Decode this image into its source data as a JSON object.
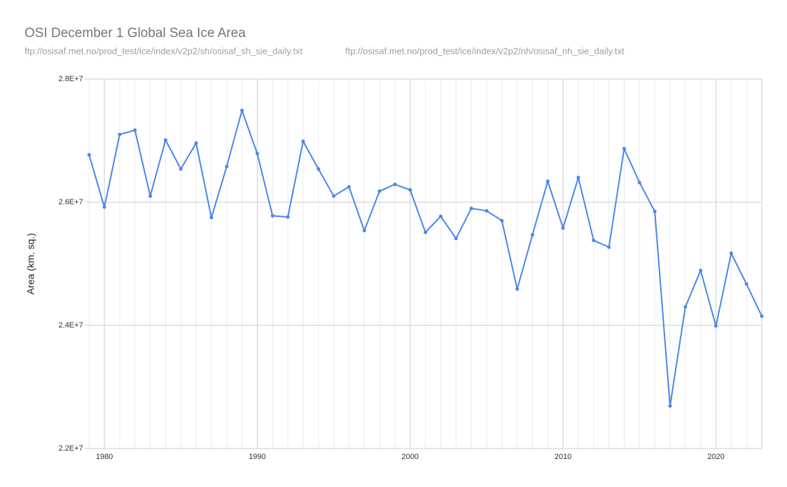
{
  "chart_data": {
    "type": "line",
    "title": "OSI December 1 Global Sea Ice Area",
    "subtitle": [
      "ftp://osisaf.met.no/prod_test/ice/index/v2p2/sh/osisaf_sh_sie_daily.txt",
      "ftp://osisaf.met.no/prod_test/ice/index/v2p2/nh/osisaf_nh_sie_daily.txt"
    ],
    "y_label": "Area (km. sq.)",
    "x": [
      1979,
      1980,
      1981,
      1982,
      1983,
      1984,
      1985,
      1986,
      1987,
      1988,
      1989,
      1990,
      1991,
      1992,
      1993,
      1994,
      1995,
      1996,
      1997,
      1998,
      1999,
      2000,
      2001,
      2002,
      2003,
      2004,
      2005,
      2006,
      2007,
      2008,
      2009,
      2010,
      2011,
      2012,
      2013,
      2014,
      2015,
      2016,
      2017,
      2018,
      2019,
      2020,
      2021,
      2022,
      2023
    ],
    "series": [
      {
        "name": "Area",
        "color": "#4a86e8",
        "values": [
          26770000,
          25920000,
          27100000,
          27170000,
          26100000,
          27010000,
          26540000,
          26960000,
          25750000,
          26580000,
          27490000,
          26790000,
          25780000,
          25760000,
          26990000,
          26540000,
          26100000,
          26250000,
          25540000,
          26180000,
          26290000,
          26200000,
          25510000,
          25770000,
          25410000,
          25900000,
          25860000,
          25700000,
          24590000,
          25470000,
          26340000,
          25580000,
          26400000,
          25380000,
          25270000,
          26870000,
          26320000,
          25850000,
          22690000,
          24300000,
          24890000,
          23990000,
          25170000,
          24670000,
          24150000
        ]
      }
    ],
    "xlim": [
      1978.7,
      2023
    ],
    "xticks": [
      1980,
      1990,
      2000,
      2010,
      2020
    ],
    "xminorticks": [
      1979,
      1981,
      1982,
      1983,
      1984,
      1985,
      1986,
      1987,
      1988,
      1989,
      1991,
      1992,
      1993,
      1994,
      1995,
      1996,
      1997,
      1998,
      1999,
      2001,
      2002,
      2003,
      2004,
      2005,
      2006,
      2007,
      2008,
      2009,
      2011,
      2012,
      2013,
      2014,
      2015,
      2016,
      2017,
      2018,
      2019,
      2021,
      2022
    ],
    "ylim": [
      22000000,
      28000000
    ],
    "yticks": [
      {
        "value": 22000000,
        "label": "2.2E+7"
      },
      {
        "value": 24000000,
        "label": "2.4E+7"
      },
      {
        "value": 26000000,
        "label": "2.6E+7"
      },
      {
        "value": 28000000,
        "label": "2.8E+7"
      }
    ],
    "grid": true
  }
}
